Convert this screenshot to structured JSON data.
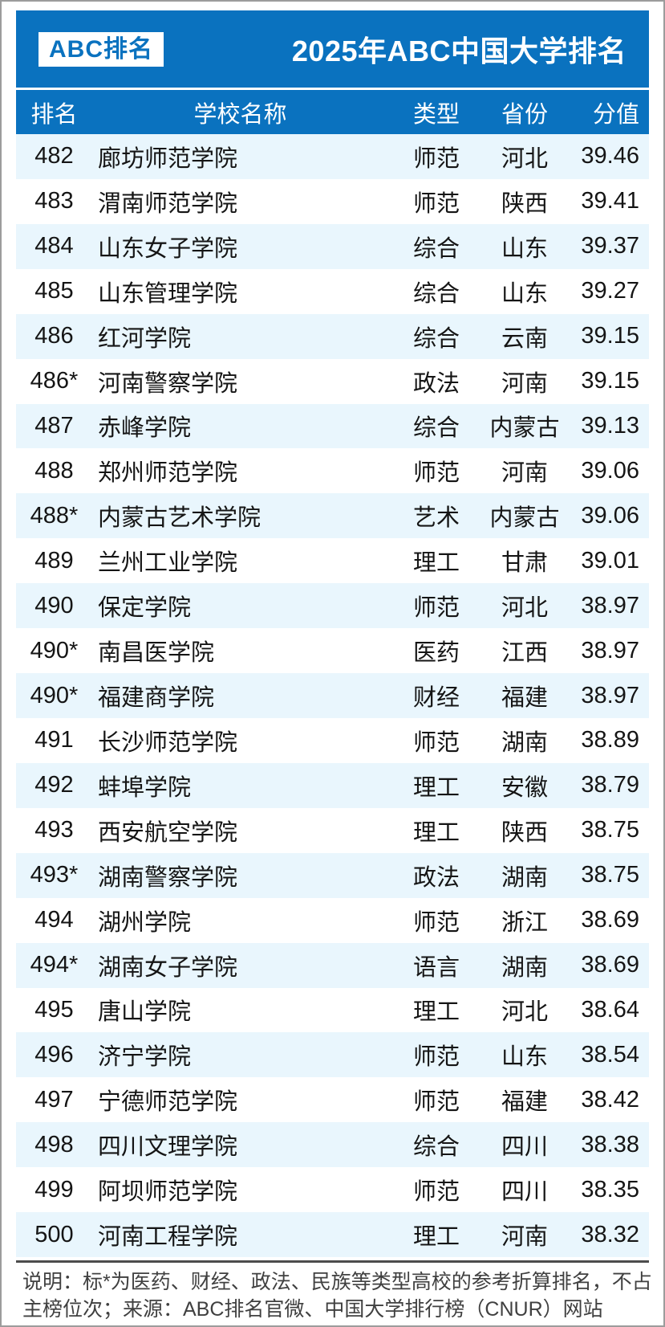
{
  "header": {
    "logo": "ABC排名",
    "title": "2025年ABC中国大学排名"
  },
  "table": {
    "columns": [
      "排名",
      "学校名称",
      "类型",
      "省份",
      "分值"
    ],
    "rows": [
      {
        "rank": "482",
        "name": "廊坊师范学院",
        "type": "师范",
        "province": "河北",
        "score": "39.46"
      },
      {
        "rank": "483",
        "name": "渭南师范学院",
        "type": "师范",
        "province": "陕西",
        "score": "39.41"
      },
      {
        "rank": "484",
        "name": "山东女子学院",
        "type": "综合",
        "province": "山东",
        "score": "39.37"
      },
      {
        "rank": "485",
        "name": "山东管理学院",
        "type": "综合",
        "province": "山东",
        "score": "39.27"
      },
      {
        "rank": "486",
        "name": "红河学院",
        "type": "综合",
        "province": "云南",
        "score": "39.15"
      },
      {
        "rank": "486*",
        "name": "河南警察学院",
        "type": "政法",
        "province": "河南",
        "score": "39.15"
      },
      {
        "rank": "487",
        "name": "赤峰学院",
        "type": "综合",
        "province": "内蒙古",
        "score": "39.13"
      },
      {
        "rank": "488",
        "name": "郑州师范学院",
        "type": "师范",
        "province": "河南",
        "score": "39.06"
      },
      {
        "rank": "488*",
        "name": "内蒙古艺术学院",
        "type": "艺术",
        "province": "内蒙古",
        "score": "39.06"
      },
      {
        "rank": "489",
        "name": "兰州工业学院",
        "type": "理工",
        "province": "甘肃",
        "score": "39.01"
      },
      {
        "rank": "490",
        "name": "保定学院",
        "type": "师范",
        "province": "河北",
        "score": "38.97"
      },
      {
        "rank": "490*",
        "name": "南昌医学院",
        "type": "医药",
        "province": "江西",
        "score": "38.97"
      },
      {
        "rank": "490*",
        "name": "福建商学院",
        "type": "财经",
        "province": "福建",
        "score": "38.97"
      },
      {
        "rank": "491",
        "name": "长沙师范学院",
        "type": "师范",
        "province": "湖南",
        "score": "38.89"
      },
      {
        "rank": "492",
        "name": "蚌埠学院",
        "type": "理工",
        "province": "安徽",
        "score": "38.79"
      },
      {
        "rank": "493",
        "name": "西安航空学院",
        "type": "理工",
        "province": "陕西",
        "score": "38.75"
      },
      {
        "rank": "493*",
        "name": "湖南警察学院",
        "type": "政法",
        "province": "湖南",
        "score": "38.75"
      },
      {
        "rank": "494",
        "name": "湖州学院",
        "type": "师范",
        "province": "浙江",
        "score": "38.69"
      },
      {
        "rank": "494*",
        "name": "湖南女子学院",
        "type": "语言",
        "province": "湖南",
        "score": "38.69"
      },
      {
        "rank": "495",
        "name": "唐山学院",
        "type": "理工",
        "province": "河北",
        "score": "38.64"
      },
      {
        "rank": "496",
        "name": "济宁学院",
        "type": "师范",
        "province": "山东",
        "score": "38.54"
      },
      {
        "rank": "497",
        "name": "宁德师范学院",
        "type": "师范",
        "province": "福建",
        "score": "38.42"
      },
      {
        "rank": "498",
        "name": "四川文理学院",
        "type": "综合",
        "province": "四川",
        "score": "38.38"
      },
      {
        "rank": "499",
        "name": "阿坝师范学院",
        "type": "师范",
        "province": "四川",
        "score": "38.35"
      },
      {
        "rank": "500",
        "name": "河南工程学院",
        "type": "理工",
        "province": "河南",
        "score": "38.32"
      }
    ]
  },
  "footer": {
    "line1": "说明：标*为医药、财经、政法、民族等类型高校的参考折算排名，不占",
    "line2": "主榜位次；来源：ABC排名官微、中国大学排行榜（CNUR）网站"
  },
  "colors": {
    "primary_blue": "#0a72bf",
    "row_stripe": "#e9f6fd",
    "footer_text": "#404040"
  }
}
